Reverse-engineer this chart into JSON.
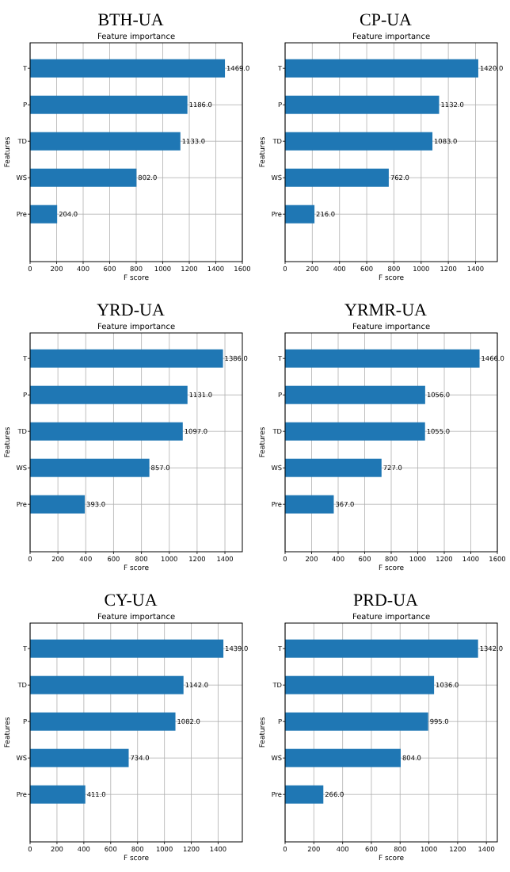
{
  "chart_data": [
    {
      "type": "bar",
      "orientation": "horizontal",
      "title": "BTH-UA",
      "subtitle": "Feature importance",
      "xlabel": "F score",
      "ylabel": "Features",
      "categories": [
        "T",
        "P",
        "TD",
        "WS",
        "Pre"
      ],
      "series": [
        {
          "color": "#1f77b4",
          "values": [
            1469,
            1186,
            1133,
            802,
            204
          ],
          "value_labels": [
            "1469.0",
            "1186.0",
            "1133.0",
            "802.0",
            "204.0"
          ]
        }
      ],
      "xlim": [
        0,
        1600
      ],
      "xticks": [
        0,
        200,
        400,
        600,
        800,
        1000,
        1200,
        1400,
        1600
      ],
      "grid": true
    },
    {
      "type": "bar",
      "orientation": "horizontal",
      "title": "CP-UA",
      "subtitle": "Feature importance",
      "xlabel": "F score",
      "ylabel": "Features",
      "categories": [
        "T",
        "P",
        "TD",
        "WS",
        "Pre"
      ],
      "series": [
        {
          "color": "#1f77b4",
          "values": [
            1420,
            1132,
            1083,
            762,
            216
          ],
          "value_labels": [
            "1420.0",
            "1132.0",
            "1083.0",
            "762.0",
            "216.0"
          ]
        }
      ],
      "xlim": [
        0,
        1560
      ],
      "xticks": [
        0,
        200,
        400,
        600,
        800,
        1000,
        1200,
        1400
      ],
      "grid": true
    },
    {
      "type": "bar",
      "orientation": "horizontal",
      "title": "YRD-UA",
      "subtitle": "Feature importance",
      "xlabel": "F score",
      "ylabel": "Features",
      "categories": [
        "T",
        "P",
        "TD",
        "WS",
        "Pre"
      ],
      "series": [
        {
          "color": "#1f77b4",
          "values": [
            1386,
            1131,
            1097,
            857,
            393
          ],
          "value_labels": [
            "1386.0",
            "1131.0",
            "1097.0",
            "857.0",
            "393.0"
          ]
        }
      ],
      "xlim": [
        0,
        1525
      ],
      "xticks": [
        0,
        200,
        400,
        600,
        800,
        1000,
        1200,
        1400
      ],
      "grid": true
    },
    {
      "type": "bar",
      "orientation": "horizontal",
      "title": "YRMR-UA",
      "subtitle": "Feature importance",
      "xlabel": "F score",
      "ylabel": "Features",
      "categories": [
        "T",
        "P",
        "TD",
        "WS",
        "Pre"
      ],
      "series": [
        {
          "color": "#1f77b4",
          "values": [
            1466,
            1056,
            1055,
            727,
            367
          ],
          "value_labels": [
            "1466.0",
            "1056.0",
            "1055.0",
            "727.0",
            "367.0"
          ]
        }
      ],
      "xlim": [
        0,
        1600
      ],
      "xticks": [
        0,
        200,
        400,
        600,
        800,
        1000,
        1200,
        1400,
        1600
      ],
      "grid": true
    },
    {
      "type": "bar",
      "orientation": "horizontal",
      "title": "CY-UA",
      "subtitle": "Feature importance",
      "xlabel": "F score",
      "ylabel": "Features",
      "categories": [
        "T",
        "TD",
        "P",
        "WS",
        "Pre"
      ],
      "series": [
        {
          "color": "#1f77b4",
          "values": [
            1439,
            1142,
            1082,
            734,
            411
          ],
          "value_labels": [
            "1439.0",
            "1142.0",
            "1082.0",
            "734.0",
            "411.0"
          ]
        }
      ],
      "xlim": [
        0,
        1580
      ],
      "xticks": [
        0,
        200,
        400,
        600,
        800,
        1000,
        1200,
        1400
      ],
      "grid": true
    },
    {
      "type": "bar",
      "orientation": "horizontal",
      "title": "PRD-UA",
      "subtitle": "Feature importance",
      "xlabel": "F score",
      "ylabel": "Features",
      "categories": [
        "T",
        "TD",
        "P",
        "WS",
        "Pre"
      ],
      "series": [
        {
          "color": "#1f77b4",
          "values": [
            1342,
            1036,
            995,
            804,
            266
          ],
          "value_labels": [
            "1342.0",
            "1036.0",
            "995.0",
            "804.0",
            "266.0"
          ]
        }
      ],
      "xlim": [
        0,
        1476
      ],
      "xticks": [
        0,
        200,
        400,
        600,
        800,
        1000,
        1200,
        1400
      ],
      "grid": true
    }
  ]
}
